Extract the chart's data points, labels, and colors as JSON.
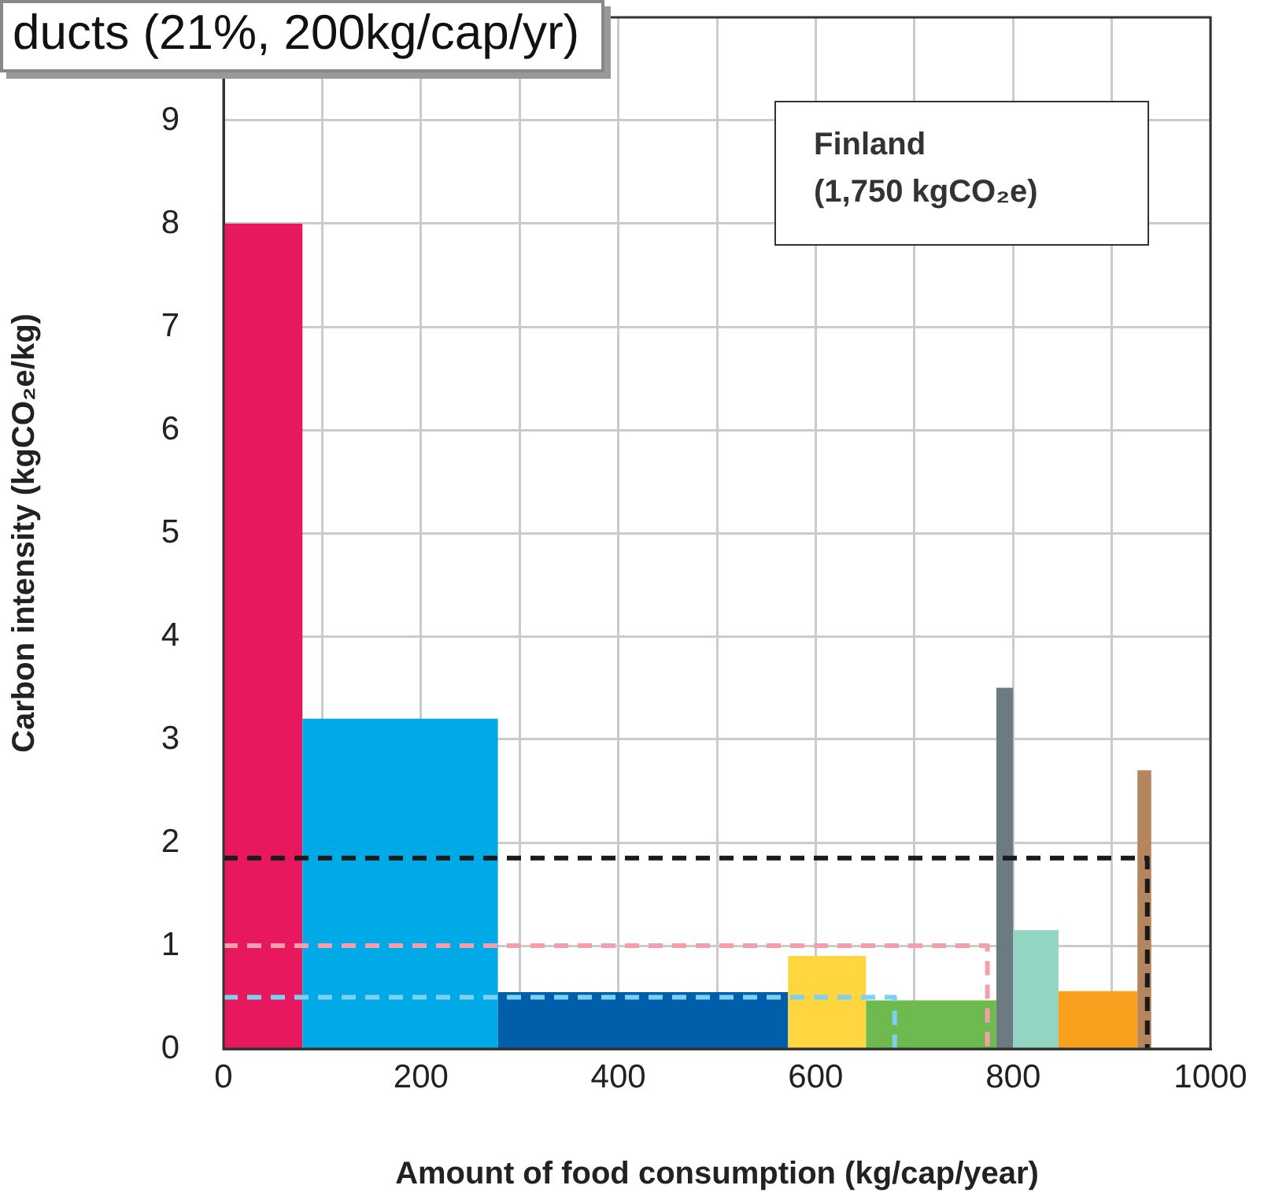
{
  "chart_data": {
    "type": "histogram",
    "xlabel": "Amount of food consumption (kg/cap/year)",
    "ylabel": "Carbon intensity (kgCO₂e/kg)",
    "annotations": [
      "ducts (21%, 200kg/cap/yr)",
      "Finland\n(1,750 kgCO₂e)"
    ],
    "bins": [
      0,
      80,
      278,
      572,
      651,
      783,
      800,
      846,
      926,
      940
    ],
    "values": [
      8,
      3.2,
      0.55,
      0.9,
      0.47,
      3.5,
      1.15,
      0.56,
      2.7
    ],
    "colors": [
      "#e8185f",
      "#00aae7",
      "#005eaa",
      "#ffd540",
      "#6fba4f",
      "#6b7b80",
      "#94d4c2",
      "#f9a11f",
      "#b5865e"
    ],
    "series": [
      {
        "type": "line",
        "color": "#1a1a1a",
        "x": [
          0,
          936,
          936
        ],
        "values": [
          1.85,
          1.85,
          0
        ]
      },
      {
        "type": "line",
        "color": "#f4a0aa",
        "x": [
          0,
          774,
          774
        ],
        "values": [
          1,
          1,
          0
        ]
      },
      {
        "type": "line",
        "color": "#7dd0f0",
        "x": [
          0,
          680,
          680
        ],
        "values": [
          0.5,
          0.5,
          0
        ]
      }
    ],
    "xlim": [
      0,
      1000
    ],
    "xticks": [
      0,
      {
        "value": 100,
        "label": null
      },
      200,
      {
        "value": 300,
        "label": null
      },
      400,
      {
        "value": 500,
        "label": null
      },
      600,
      {
        "value": 700,
        "label": null
      },
      800,
      {
        "value": 900,
        "label": null
      },
      1000
    ],
    "ylim": [
      0,
      10
    ],
    "yticks": [
      0,
      1,
      2,
      3,
      4,
      5,
      6,
      7,
      8,
      9
    ],
    "grid": true,
    "legend": false,
    "marker": "none",
    "line_style": "dashed"
  }
}
